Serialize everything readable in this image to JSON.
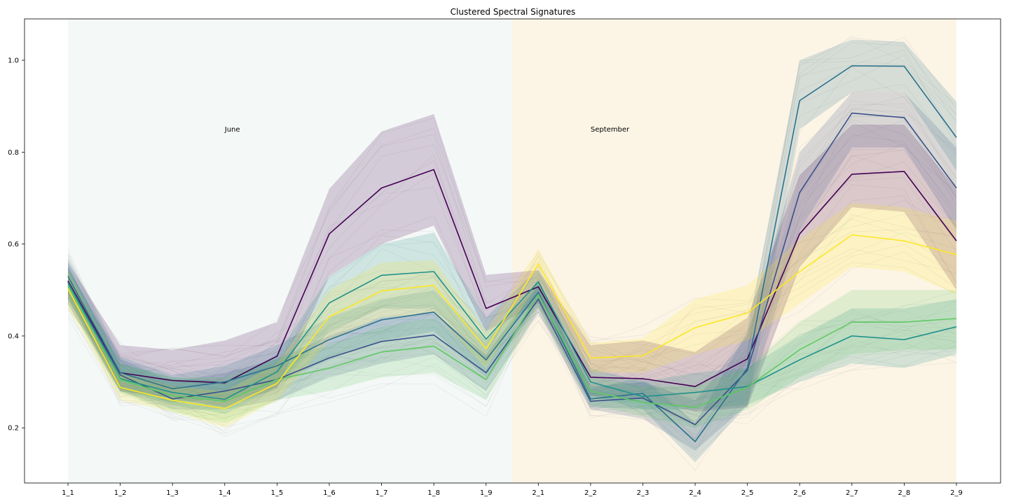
{
  "chart_data": {
    "type": "line",
    "title": "Clustered Spectral Signatures",
    "xlabel": "",
    "ylabel": "",
    "categories": [
      "1_1",
      "1_2",
      "1_3",
      "1_4",
      "1_5",
      "1_6",
      "1_7",
      "1_8",
      "1_9",
      "2_1",
      "2_2",
      "2_3",
      "2_4",
      "2_5",
      "2_6",
      "2_7",
      "2_8",
      "2_9"
    ],
    "ylim": [
      0.08,
      1.09
    ],
    "yticks": [
      0.2,
      0.4,
      0.6,
      0.8,
      1.0
    ],
    "ytick_labels": [
      "0.2",
      "0.4",
      "0.6",
      "0.8",
      "1.0"
    ],
    "grid": false,
    "legend": "none",
    "regions": [
      {
        "label": "June",
        "from": "1_1",
        "to_mid": [
          "1_9",
          "2_1"
        ],
        "color": "#f4f8f6"
      },
      {
        "label": "September",
        "from_mid": [
          "1_9",
          "2_1"
        ],
        "to": "2_9",
        "color": "#fcf5e6"
      }
    ],
    "annotations": [
      {
        "text": "June",
        "x": "1_4",
        "y": 0.85
      },
      {
        "text": "September",
        "x": "2_2",
        "y": 0.85
      }
    ],
    "series": [
      {
        "color": "#440154",
        "values": [
          0.52,
          0.32,
          0.303,
          0.298,
          0.356,
          0.622,
          0.722,
          0.762,
          0.46,
          0.507,
          0.31,
          0.307,
          0.29,
          0.35,
          0.622,
          0.752,
          0.758,
          0.607
        ],
        "lower": [
          0.48,
          0.28,
          0.265,
          0.245,
          0.285,
          0.53,
          0.6,
          0.64,
          0.41,
          0.47,
          0.27,
          0.262,
          0.235,
          0.245,
          0.55,
          0.68,
          0.67,
          0.5
        ],
        "upper": [
          0.56,
          0.38,
          0.37,
          0.39,
          0.43,
          0.72,
          0.845,
          0.883,
          0.533,
          0.543,
          0.38,
          0.39,
          0.365,
          0.44,
          0.75,
          0.86,
          0.86,
          0.72
        ]
      },
      {
        "color": "#3b528b",
        "values": [
          0.518,
          0.315,
          0.263,
          0.28,
          0.305,
          0.352,
          0.388,
          0.402,
          0.32,
          0.48,
          0.258,
          0.265,
          0.207,
          0.325,
          0.712,
          0.885,
          0.875,
          0.722
        ],
        "lower": [
          0.47,
          0.28,
          0.24,
          0.24,
          0.26,
          0.31,
          0.34,
          0.36,
          0.28,
          0.45,
          0.24,
          0.22,
          0.15,
          0.25,
          0.63,
          0.81,
          0.81,
          0.63
        ],
        "upper": [
          0.55,
          0.35,
          0.3,
          0.32,
          0.35,
          0.4,
          0.44,
          0.45,
          0.36,
          0.51,
          0.29,
          0.3,
          0.26,
          0.4,
          0.8,
          0.93,
          0.93,
          0.81
        ]
      },
      {
        "color": "#2c728e",
        "values": [
          0.53,
          0.32,
          0.285,
          0.3,
          0.335,
          0.392,
          0.435,
          0.452,
          0.348,
          0.495,
          0.263,
          0.275,
          0.17,
          0.33,
          0.912,
          0.988,
          0.987,
          0.832
        ],
        "lower": [
          0.49,
          0.285,
          0.255,
          0.265,
          0.295,
          0.35,
          0.39,
          0.41,
          0.31,
          0.47,
          0.245,
          0.24,
          0.125,
          0.25,
          0.85,
          0.93,
          0.93,
          0.76
        ],
        "upper": [
          0.57,
          0.355,
          0.315,
          0.335,
          0.38,
          0.44,
          0.48,
          0.5,
          0.39,
          0.52,
          0.285,
          0.31,
          0.21,
          0.41,
          1.0,
          1.045,
          1.04,
          0.91
        ]
      },
      {
        "color": "#21918c",
        "values": [
          0.515,
          0.307,
          0.277,
          0.262,
          0.322,
          0.472,
          0.532,
          0.54,
          0.393,
          0.518,
          0.3,
          0.268,
          0.277,
          0.29,
          0.348,
          0.4,
          0.392,
          0.42
        ],
        "lower": [
          0.48,
          0.28,
          0.25,
          0.23,
          0.29,
          0.41,
          0.46,
          0.46,
          0.35,
          0.49,
          0.27,
          0.24,
          0.24,
          0.25,
          0.3,
          0.34,
          0.33,
          0.36
        ],
        "upper": [
          0.55,
          0.34,
          0.31,
          0.3,
          0.36,
          0.53,
          0.6,
          0.625,
          0.44,
          0.545,
          0.33,
          0.3,
          0.32,
          0.33,
          0.4,
          0.46,
          0.46,
          0.48
        ]
      },
      {
        "color": "#5ec962",
        "values": [
          0.51,
          0.305,
          0.27,
          0.258,
          0.305,
          0.33,
          0.365,
          0.378,
          0.305,
          0.49,
          0.28,
          0.255,
          0.245,
          0.288,
          0.37,
          0.43,
          0.43,
          0.438
        ],
        "lower": [
          0.47,
          0.275,
          0.235,
          0.21,
          0.26,
          0.28,
          0.31,
          0.32,
          0.26,
          0.46,
          0.25,
          0.225,
          0.2,
          0.24,
          0.31,
          0.36,
          0.37,
          0.37
        ],
        "upper": [
          0.55,
          0.34,
          0.31,
          0.31,
          0.35,
          0.38,
          0.42,
          0.44,
          0.35,
          0.52,
          0.31,
          0.29,
          0.29,
          0.33,
          0.43,
          0.5,
          0.5,
          0.5
        ]
      },
      {
        "color": "#fde725",
        "values": [
          0.503,
          0.288,
          0.26,
          0.242,
          0.297,
          0.442,
          0.498,
          0.51,
          0.372,
          0.557,
          0.352,
          0.357,
          0.418,
          0.45,
          0.54,
          0.62,
          0.607,
          0.577
        ],
        "lower": [
          0.46,
          0.26,
          0.235,
          0.2,
          0.26,
          0.39,
          0.44,
          0.45,
          0.33,
          0.52,
          0.32,
          0.32,
          0.36,
          0.39,
          0.47,
          0.55,
          0.54,
          0.49
        ],
        "upper": [
          0.54,
          0.32,
          0.29,
          0.28,
          0.34,
          0.5,
          0.56,
          0.565,
          0.41,
          0.59,
          0.385,
          0.395,
          0.48,
          0.51,
          0.61,
          0.69,
          0.68,
          0.65
        ]
      }
    ]
  }
}
